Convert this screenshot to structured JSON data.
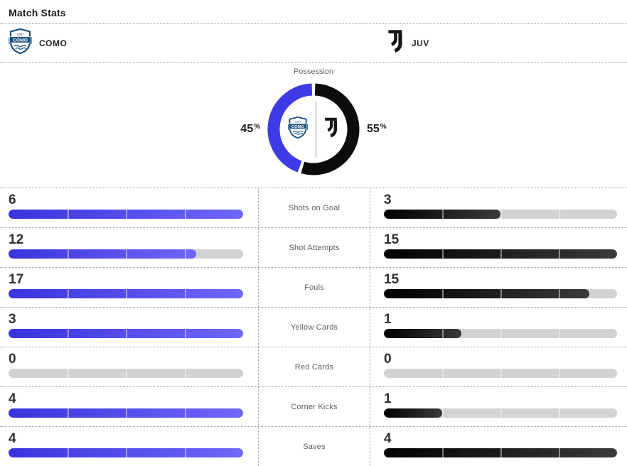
{
  "title": "Match Stats",
  "teams": {
    "home": {
      "name": "COMO"
    },
    "away": {
      "name": "JUV"
    }
  },
  "possession": {
    "label": "Possession",
    "home_value": "45",
    "away_value": "55",
    "unit": "%",
    "home_pct": 45,
    "away_pct": 55
  },
  "stats": [
    {
      "label": "Shots on Goal",
      "home": 6,
      "away": 3
    },
    {
      "label": "Shot Attempts",
      "home": 12,
      "away": 15
    },
    {
      "label": "Fouls",
      "home": 17,
      "away": 15
    },
    {
      "label": "Yellow Cards",
      "home": 3,
      "away": 1
    },
    {
      "label": "Red Cards",
      "home": 0,
      "away": 0
    },
    {
      "label": "Corner Kicks",
      "home": 4,
      "away": 1
    },
    {
      "label": "Saves",
      "home": 4,
      "away": 4
    }
  ],
  "colors": {
    "home_bar_start": "#3a33dd",
    "home_bar_end": "#6f67f8",
    "away_bar_start": "#000000",
    "away_bar_end": "#3a3a3a",
    "donut_home": "#3e3ae6",
    "donut_away": "#0c0c0c",
    "track": "#d2d2d2",
    "crest_navy": "#1b4f7d",
    "logo_black": "#131313"
  }
}
